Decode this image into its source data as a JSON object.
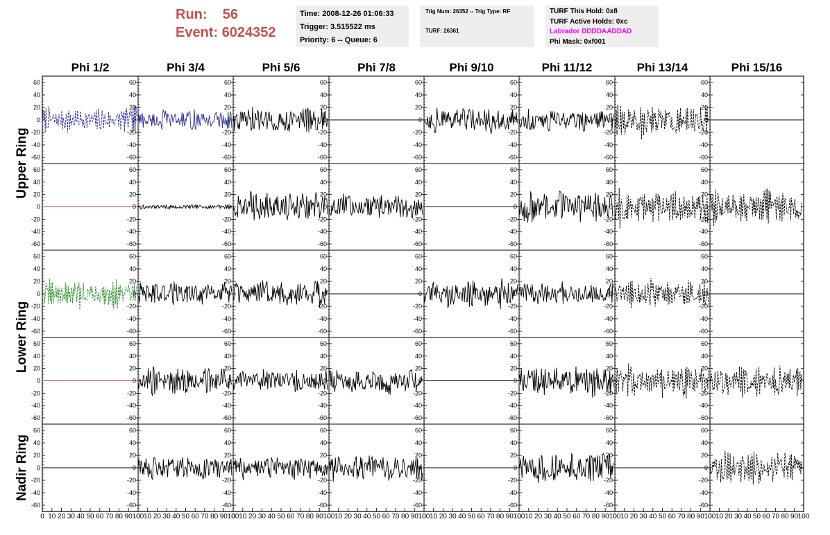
{
  "header": {
    "run_label": "Run:",
    "run_value": "56",
    "event_label": "Event:",
    "event_value": "6024352"
  },
  "info": {
    "time": "Time: 2008-12-26 01:06:33",
    "trigger": "Trigger: 3.515522 ms",
    "priority": "Priority: 6 -- Queue: 6",
    "trig_num": "Trig Num: 26352 -- Trig Type: RF",
    "turf": "TURF: 26361",
    "turf_hold": "TURF This Hold: 0x8",
    "turf_active": "TURF Active Holds: 0xc",
    "labrador": "Labrador DDDDAADDAD",
    "phi_mask": "Phi Mask: 0xf001"
  },
  "colors": {
    "labrador": "#ff00ff",
    "run": "#c8504a",
    "blue": "#2a2a9a",
    "green": "#228b22",
    "red": "#cc3333",
    "box": "#eeeeee"
  },
  "chart_data": {
    "type": "line",
    "columns": [
      "Phi 1/2",
      "Phi 3/4",
      "Phi 5/6",
      "Phi 7/8",
      "Phi 9/10",
      "Phi 11/12",
      "Phi 13/14",
      "Phi 15/16"
    ],
    "rows": [
      "Upper Ring",
      "Lower Ring",
      "Nadir Ring"
    ],
    "xlim": [
      0,
      100
    ],
    "ylim": [
      -70,
      70
    ],
    "yticks": [
      -60,
      -40,
      -20,
      0,
      20,
      40,
      60
    ],
    "xticks": [
      0,
      10,
      20,
      30,
      40,
      50,
      60,
      70,
      80,
      90,
      100
    ],
    "panels": [
      [
        {
          "style": "blue-dash",
          "amp": 24
        },
        {
          "style": "blue",
          "amp": 14
        },
        {
          "style": "black",
          "amp": 18
        },
        {
          "style": "flat",
          "amp": 0
        },
        {
          "style": "black",
          "amp": 18
        },
        {
          "style": "black",
          "amp": 15
        },
        {
          "style": "black-dash",
          "amp": 30
        },
        {
          "style": "flat",
          "amp": 0
        }
      ],
      [
        {
          "style": "red-flat",
          "amp": 0
        },
        {
          "style": "black",
          "amp": 3
        },
        {
          "style": "black",
          "amp": 22
        },
        {
          "style": "black",
          "amp": 18
        },
        {
          "style": "flat",
          "amp": 0
        },
        {
          "style": "black",
          "amp": 22
        },
        {
          "style": "black-dash",
          "amp": 30
        },
        {
          "style": "black-dash",
          "amp": 30
        }
      ],
      [
        {
          "style": "green-dash",
          "amp": 24
        },
        {
          "style": "black",
          "amp": 16
        },
        {
          "style": "black",
          "amp": 18
        },
        {
          "style": "flat",
          "amp": 0
        },
        {
          "style": "black",
          "amp": 20
        },
        {
          "style": "black",
          "amp": 16
        },
        {
          "style": "black-dash",
          "amp": 26
        },
        {
          "style": "flat",
          "amp": 0
        }
      ],
      [
        {
          "style": "red-flat",
          "amp": 0
        },
        {
          "style": "black",
          "amp": 20
        },
        {
          "style": "black",
          "amp": 16
        },
        {
          "style": "black",
          "amp": 18
        },
        {
          "style": "flat",
          "amp": 0
        },
        {
          "style": "black",
          "amp": 22
        },
        {
          "style": "black-dash",
          "amp": 32
        },
        {
          "style": "black-dash",
          "amp": 30
        }
      ],
      [
        {
          "style": "flat",
          "amp": 0
        },
        {
          "style": "black",
          "amp": 16
        },
        {
          "style": "black",
          "amp": 16
        },
        {
          "style": "black",
          "amp": 18
        },
        {
          "style": "flat",
          "amp": 0
        },
        {
          "style": "black",
          "amp": 22
        },
        {
          "style": "flat",
          "amp": 0
        },
        {
          "style": "black-dash",
          "amp": 30
        }
      ]
    ]
  }
}
